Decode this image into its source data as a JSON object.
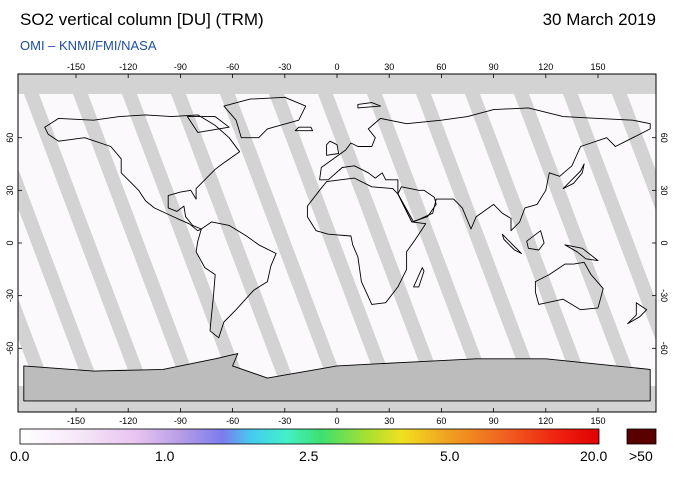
{
  "header": {
    "title": "SO2 vertical column [DU] (TRM)",
    "date": "30 March 2019",
    "credit": "OMI  –  KNMI/FMI/NASA"
  },
  "map": {
    "lon_ticks": [
      "-150",
      "-120",
      "-90",
      "-60",
      "-30",
      "0",
      "30",
      "60",
      "90",
      "120",
      "150"
    ],
    "lat_ticks": [
      "60",
      "30",
      "0",
      "-30",
      "-60"
    ],
    "colors": {
      "background_gray": "#d3d3d3",
      "swath_white": "#fbf9fc",
      "land_gray": "#a8a8a8",
      "coast": "#000000"
    }
  },
  "colorbar": {
    "labels": [
      "0.0",
      "1.0",
      "2.5",
      "5.0",
      "20.0"
    ],
    "overflow_label": ">50",
    "overflow_color": "#5a0000"
  }
}
